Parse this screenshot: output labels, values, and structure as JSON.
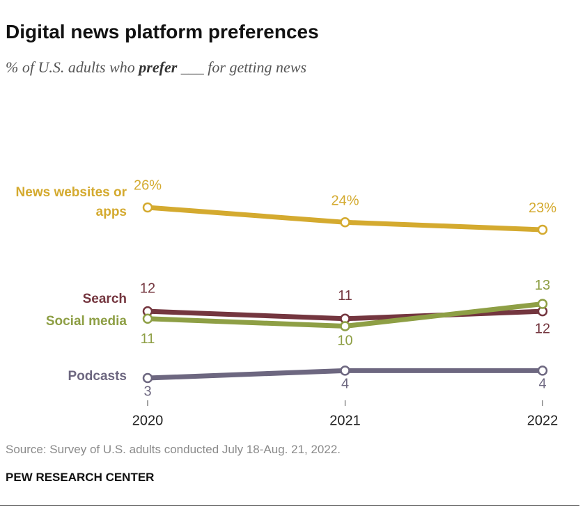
{
  "chart_data": {
    "type": "line",
    "title": "Digital news platform preferences",
    "subtitle": [
      "% of U.S. adults who ",
      "prefer",
      " ___ for getting news"
    ],
    "x": [
      2020,
      2021,
      2022
    ],
    "xlim": [
      2020,
      2022
    ],
    "xticks": [
      2020,
      2021,
      2022
    ],
    "ylim": [
      0,
      26
    ],
    "series": [
      {
        "name": "News websites or apps",
        "color": "#d4aa2f",
        "values": [
          26,
          24,
          23
        ],
        "value_labels": [
          "26%",
          "24%",
          "23%"
        ]
      },
      {
        "name": "Search",
        "color": "#74363f",
        "values": [
          12,
          11,
          12
        ]
      },
      {
        "name": "Social media",
        "color": "#8e9f45",
        "values": [
          11,
          10,
          13
        ]
      },
      {
        "name": "Podcasts",
        "color": "#6d6780",
        "values": [
          3,
          4,
          4
        ]
      }
    ],
    "source": "Source: Survey of U.S. adults conducted July 18-Aug. 21, 2022.",
    "credit": "PEW RESEARCH CENTER"
  }
}
